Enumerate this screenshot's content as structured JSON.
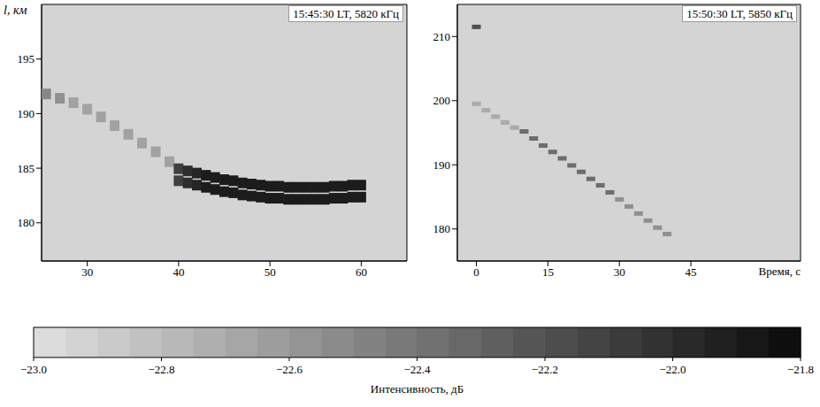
{
  "colorbar": {
    "label": "Интенсивность, дБ",
    "range": [
      -23,
      -21.8
    ],
    "ticks": [
      {
        "value": -23,
        "label": "−23.0"
      },
      {
        "value": -22.8,
        "label": "−22.8"
      },
      {
        "value": -22.6,
        "label": "−22.6"
      },
      {
        "value": -22.4,
        "label": "−22.4"
      },
      {
        "value": -22.2,
        "label": "−22.2"
      },
      {
        "value": -22,
        "label": "−22.0"
      },
      {
        "value": -21.8,
        "label": "−21.8"
      }
    ]
  },
  "chart_data": [
    {
      "type": "scatter",
      "annotation": "15:45:30 LT, 5820 кГц",
      "y_label": "l, км",
      "xlim": [
        25,
        65
      ],
      "xticks": [
        30,
        40,
        50,
        60
      ],
      "ylim": [
        176.5,
        200
      ],
      "yticks": [
        180,
        185,
        190,
        195
      ],
      "x": [
        25.5,
        27,
        28.5,
        30,
        31.5,
        33,
        34.5,
        36,
        37.5,
        39,
        40,
        41,
        42,
        43,
        44,
        45,
        46,
        47,
        48,
        49,
        50,
        51,
        52,
        53,
        54,
        55,
        56,
        57,
        58,
        59,
        60,
        40,
        41,
        42,
        43,
        44,
        45,
        46,
        47,
        48,
        49,
        50,
        51,
        52,
        53,
        54,
        55,
        56,
        57,
        58,
        59,
        60
      ],
      "y": [
        191.8,
        191.4,
        191,
        190.4,
        189.7,
        188.9,
        188.1,
        187.3,
        186.5,
        185.6,
        184.95,
        184.75,
        184.55,
        184.35,
        184.15,
        183.95,
        183.85,
        183.65,
        183.55,
        183.45,
        183.35,
        183.35,
        183.25,
        183.25,
        183.25,
        183.25,
        183.25,
        183.35,
        183.35,
        183.45,
        183.45,
        183.85,
        183.65,
        183.45,
        183.25,
        183.05,
        182.85,
        182.75,
        182.55,
        182.45,
        182.35,
        182.25,
        182.25,
        182.15,
        182.15,
        182.15,
        182.15,
        182.15,
        182.25,
        182.25,
        182.35,
        182.35
      ],
      "intensity": [
        -22.5,
        -22.55,
        -22.65,
        -22.65,
        -22.65,
        -22.65,
        -22.65,
        -22.65,
        -22.65,
        -22.65,
        -22.1,
        -22,
        -21.95,
        -21.9,
        -21.9,
        -21.9,
        -21.9,
        -21.9,
        -21.9,
        -21.9,
        -21.9,
        -21.9,
        -21.9,
        -21.9,
        -21.9,
        -21.9,
        -21.9,
        -21.9,
        -21.9,
        -21.9,
        -21.9,
        -22.1,
        -22,
        -21.95,
        -21.9,
        -21.9,
        -21.9,
        -21.9,
        -21.9,
        -21.9,
        -21.9,
        -21.9,
        -21.9,
        -21.9,
        -21.9,
        -21.9,
        -21.9,
        -21.9,
        -21.9,
        -21.9,
        -21.9,
        -21.9
      ]
    },
    {
      "type": "scatter",
      "annotation": "15:50:30 LT, 5850 кГц",
      "x_label": "Время, с",
      "xlim": [
        -4,
        68
      ],
      "xticks": [
        0,
        15,
        30,
        45
      ],
      "ylim": [
        175,
        215
      ],
      "yticks": [
        180,
        190,
        200,
        210
      ],
      "x": [
        0,
        0,
        2,
        4,
        6,
        8,
        10,
        12,
        14,
        16,
        18,
        20,
        22,
        24,
        26,
        28,
        30,
        32,
        34,
        36,
        38,
        40
      ],
      "y": [
        211.5,
        199.5,
        198.5,
        197.5,
        196.6,
        195.8,
        195.2,
        194.1,
        193,
        192,
        191,
        189.9,
        188.9,
        187.8,
        186.8,
        185.7,
        184.6,
        183.5,
        182.4,
        181.3,
        180.2,
        179.2
      ],
      "intensity": [
        -22.2,
        -22.7,
        -22.7,
        -22.7,
        -22.7,
        -22.7,
        -22.35,
        -22.35,
        -22.35,
        -22.35,
        -22.35,
        -22.35,
        -22.35,
        -22.35,
        -22.35,
        -22.35,
        -22.55,
        -22.55,
        -22.55,
        -22.55,
        -22.55,
        -22.55
      ]
    }
  ]
}
